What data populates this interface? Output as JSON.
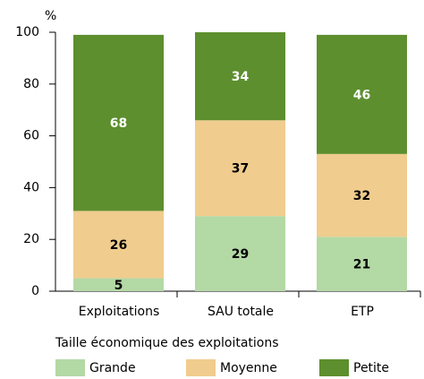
{
  "chart_data": {
    "type": "bar",
    "stacked": true,
    "y_label": "%",
    "categories": [
      "Exploitations",
      "SAU totale",
      "ETP"
    ],
    "series": [
      {
        "name": "Grande",
        "color": "#b3d9a5",
        "label_color": "#000000",
        "values": [
          5,
          29,
          21
        ]
      },
      {
        "name": "Moyenne",
        "color": "#f0cc8e",
        "label_color": "#000000",
        "values": [
          26,
          37,
          32
        ]
      },
      {
        "name": "Petite",
        "color": "#5d8f2e",
        "label_color": "#ffffff",
        "values": [
          68,
          34,
          46
        ]
      }
    ],
    "legend_title": "Taille économique des exploitations",
    "ylim": [
      0,
      100
    ],
    "yticks": [
      0,
      20,
      40,
      60,
      80,
      100
    ],
    "grid": false
  }
}
